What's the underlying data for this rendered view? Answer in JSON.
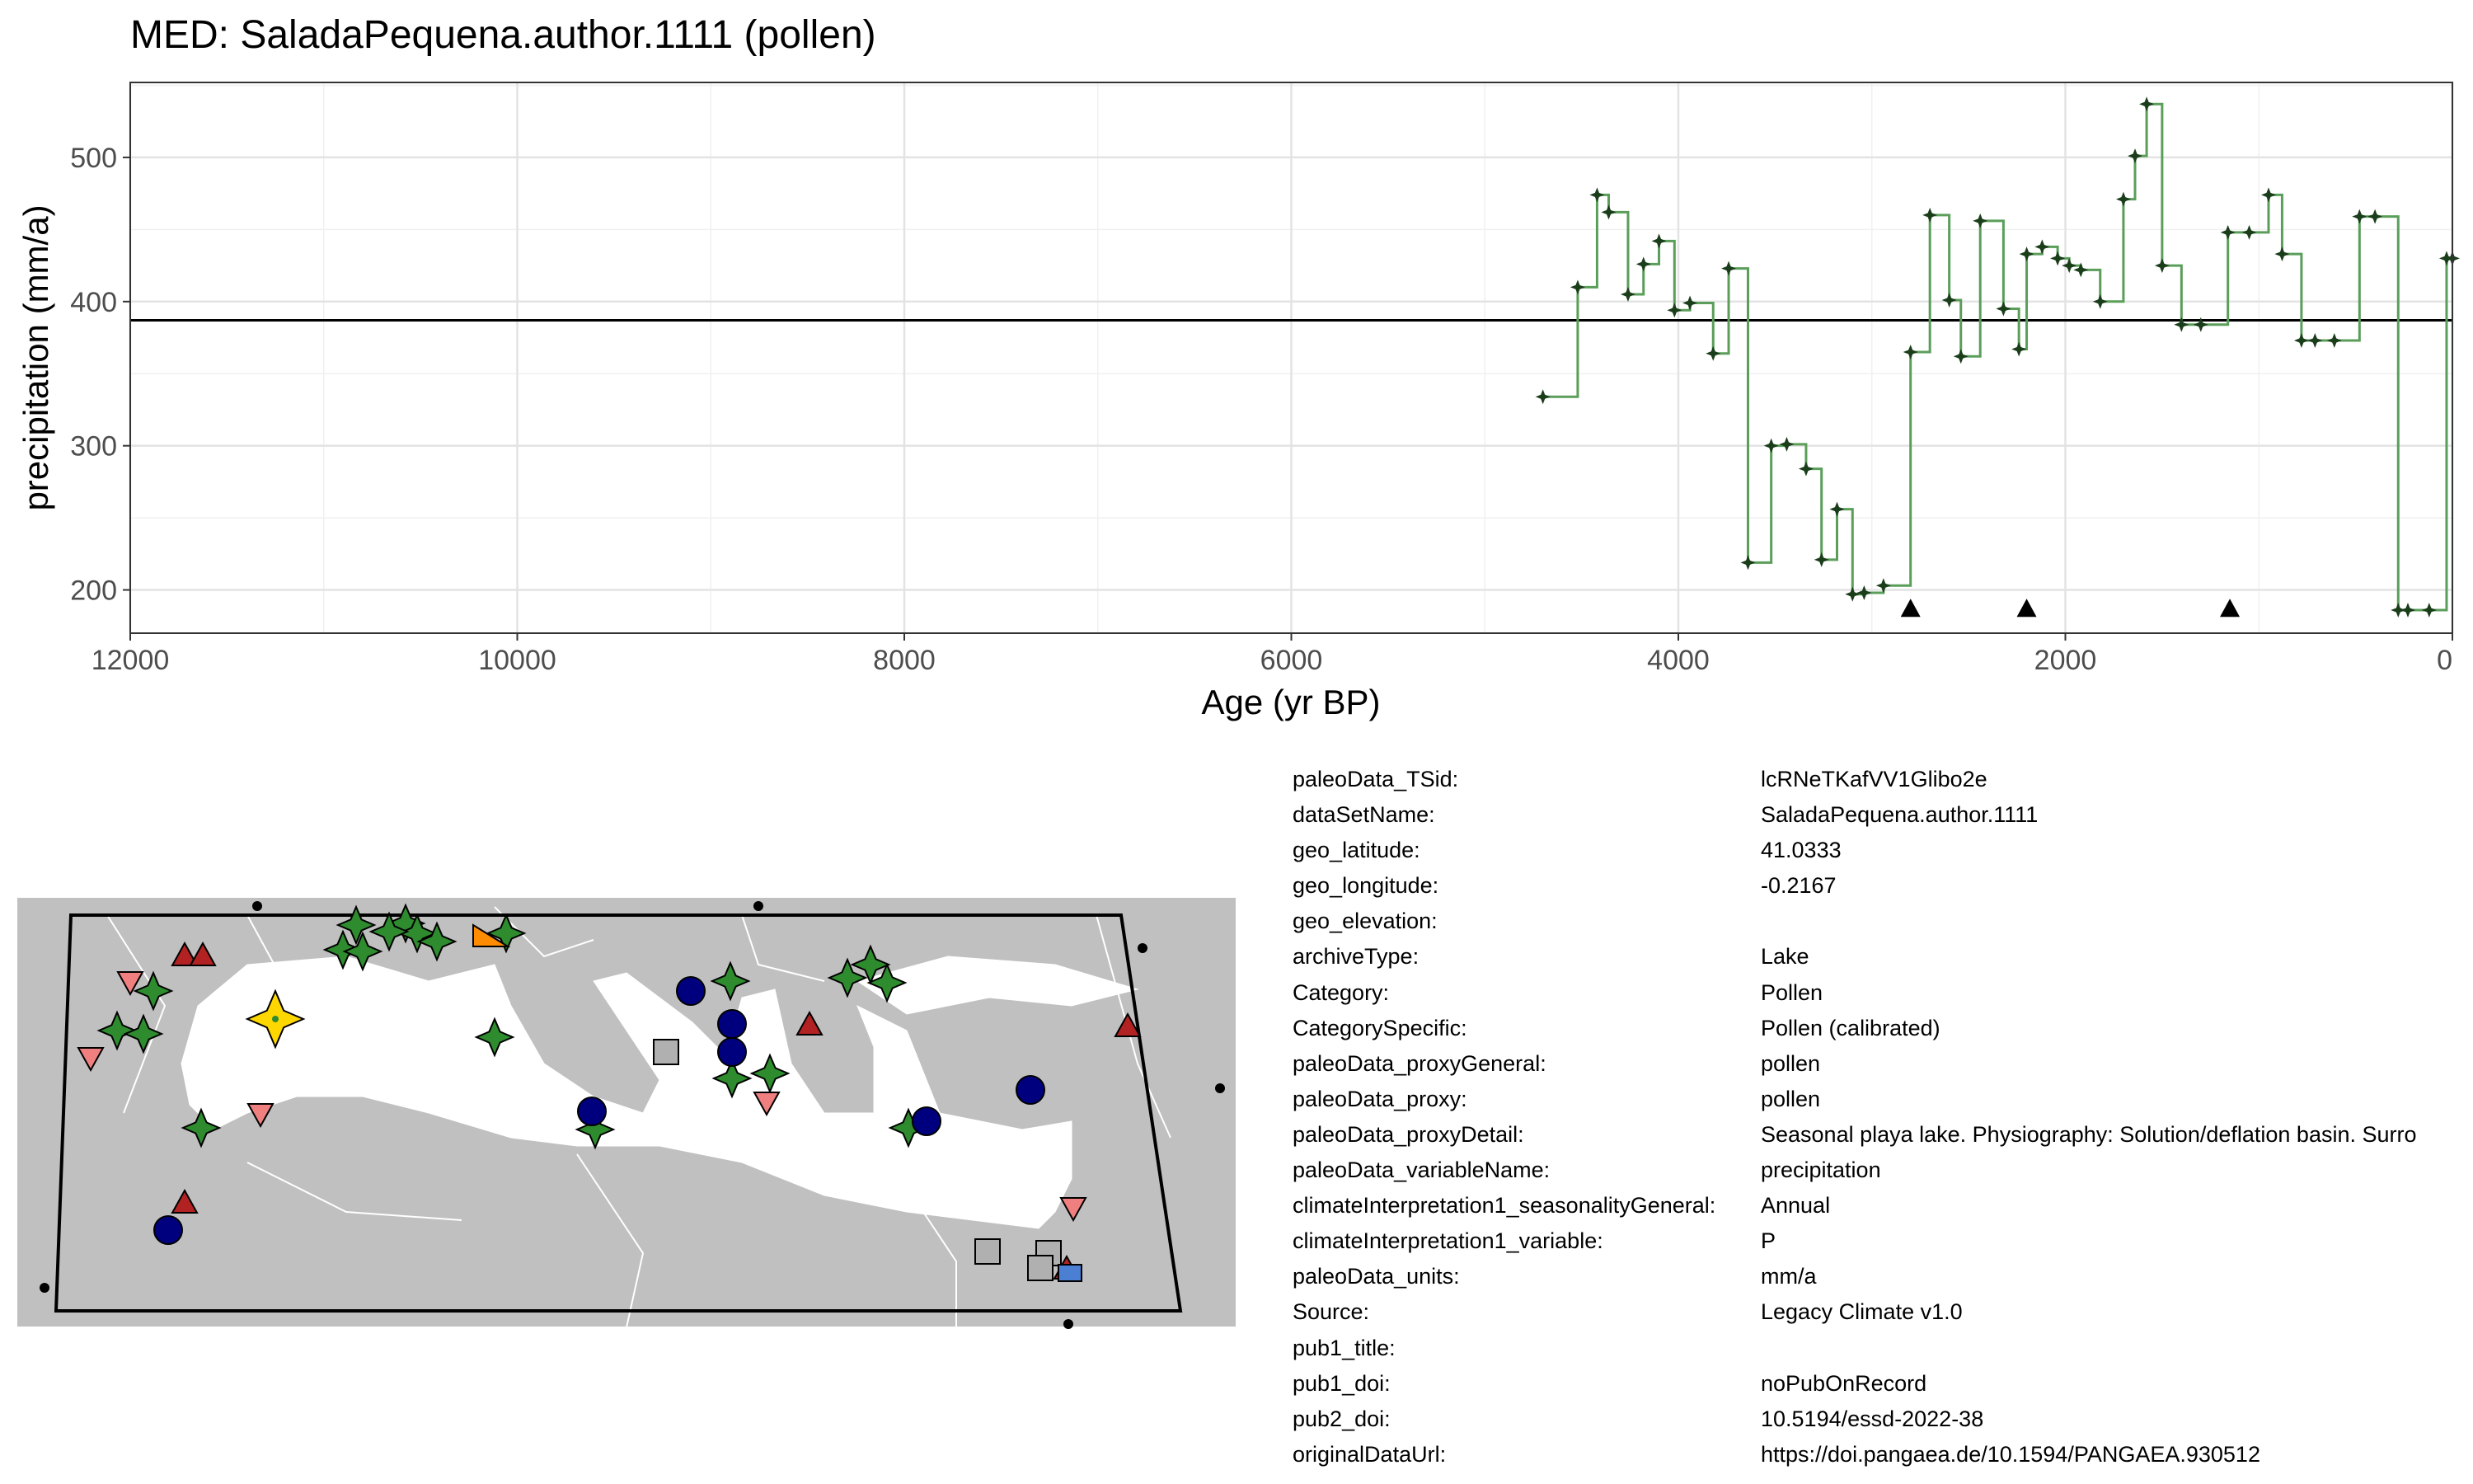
{
  "chart_data": {
    "type": "line",
    "title": "MED: SaladaPequena.author.1111 (pollen)",
    "xlabel": "Age (yr BP)",
    "ylabel": "precipitation (mm/a)",
    "xlim": [
      12000,
      0
    ],
    "ylim": [
      170,
      552
    ],
    "x_ticks": [
      12000,
      10000,
      8000,
      6000,
      4000,
      2000,
      0
    ],
    "y_ticks": [
      200,
      300,
      400,
      500
    ],
    "reference_line": 387,
    "grid": true,
    "series": [
      {
        "step": true,
        "color": "#5a9e5a",
        "x": [
          4700,
          4520,
          4420,
          4360,
          4260,
          4180,
          4100,
          4020,
          3940,
          3820,
          3740,
          3640,
          3520,
          3440,
          3340,
          3260,
          3180,
          3100,
          3040,
          2940,
          2800,
          2700,
          2600,
          2540,
          2440,
          2320,
          2240,
          2200,
          2120,
          2040,
          1980,
          1920,
          1820,
          1700,
          1640,
          1580,
          1500,
          1400,
          1300,
          1160,
          1050,
          950,
          880,
          780,
          710,
          610,
          480,
          400,
          280,
          230,
          120,
          30,
          0
        ],
        "y": [
          334,
          410,
          474,
          462,
          405,
          426,
          442,
          394,
          399,
          364,
          423,
          219,
          300,
          301,
          284,
          221,
          256,
          197,
          198,
          203,
          365,
          460,
          401,
          362,
          456,
          395,
          367,
          433,
          438,
          430,
          425,
          422,
          400,
          471,
          501,
          537,
          425,
          384,
          384,
          448,
          448,
          474,
          433,
          373,
          373,
          373,
          459,
          459,
          186,
          186,
          186,
          430,
          430
        ]
      }
    ],
    "markers": [
      {
        "x": 2800,
        "y": 187,
        "shape": "triangle"
      },
      {
        "x": 2200,
        "y": 187,
        "shape": "triangle"
      },
      {
        "x": 1150,
        "y": 187,
        "shape": "triangle"
      }
    ]
  },
  "metadata": [
    {
      "key": "paleoData_TSid:",
      "value": "lcRNeTKafVV1Glibo2e"
    },
    {
      "key": "dataSetName:",
      "value": "SaladaPequena.author.1111"
    },
    {
      "key": "geo_latitude:",
      "value": "41.0333"
    },
    {
      "key": "geo_longitude:",
      "value": "-0.2167"
    },
    {
      "key": "geo_elevation:",
      "value": ""
    },
    {
      "key": "archiveType:",
      "value": "Lake"
    },
    {
      "key": "Category:",
      "value": "Pollen"
    },
    {
      "key": "CategorySpecific:",
      "value": "Pollen (calibrated)"
    },
    {
      "key": "paleoData_proxyGeneral:",
      "value": "pollen"
    },
    {
      "key": "paleoData_proxy:",
      "value": "pollen"
    },
    {
      "key": "paleoData_proxyDetail:",
      "value": "Seasonal playa lake. Physiography: Solution/deflation basin. Surro"
    },
    {
      "key": "paleoData_variableName:",
      "value": "precipitation"
    },
    {
      "key": "climateInterpretation1_seasonalityGeneral:",
      "value": "Annual"
    },
    {
      "key": "climateInterpretation1_variable:",
      "value": "P"
    },
    {
      "key": "paleoData_units:",
      "value": "mm/a"
    },
    {
      "key": "Source:",
      "value": "Legacy Climate v1.0"
    },
    {
      "key": "pub1_title:",
      "value": ""
    },
    {
      "key": "pub1_doi:",
      "value": "noPubOnRecord"
    },
    {
      "key": "pub2_doi:",
      "value": "10.5194/essd-2022-38"
    },
    {
      "key": "originalDataUrl:",
      "value": "https://doi.pangaea.de/10.1594/PANGAEA.930512"
    }
  ],
  "map": {
    "land_color": "#c0c0c0",
    "sea_color": "#ffffff",
    "highlight_color": "#ffd700",
    "symbols": [
      {
        "shape": "star",
        "color": "#2e8b2e",
        "count": 30
      },
      {
        "shape": "circle",
        "color": "#00007f",
        "count": 8
      },
      {
        "shape": "triangle-up",
        "color": "#b22222",
        "count": 6
      },
      {
        "shape": "triangle-down",
        "color": "#f08080",
        "count": 6
      },
      {
        "shape": "square",
        "color": "#b0b0b0",
        "count": 4
      },
      {
        "shape": "square",
        "color": "#4a7fd4",
        "count": 1
      },
      {
        "shape": "triangle",
        "color": "#ff8c00",
        "count": 1
      }
    ]
  }
}
